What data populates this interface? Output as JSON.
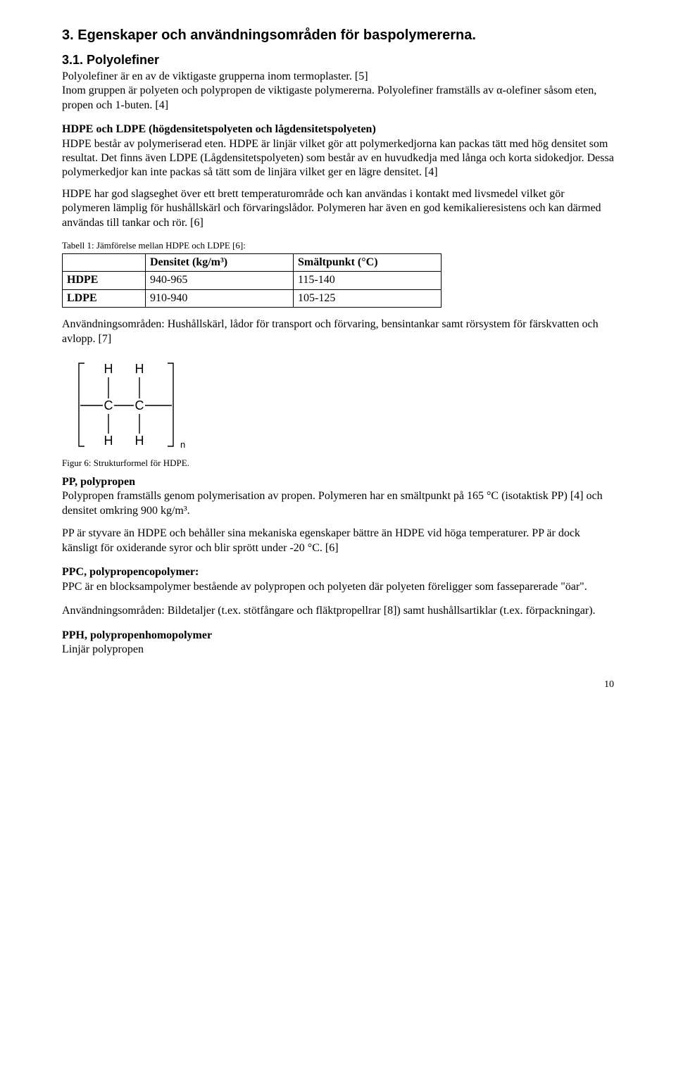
{
  "section": {
    "heading": "3. Egenskaper och användningsområden för baspolymererna.",
    "sub_heading": "3.1. Polyolefiner",
    "intro_para": "Polyolefiner är en av de viktigaste grupperna inom termoplaster. [5]\nInom gruppen är polyeten och polypropen de viktigaste polymererna. Polyolefiner framställs av α-olefiner såsom eten, propen och 1-buten. [4]",
    "hdpe_ldpe_heading": "HDPE och LDPE (högdensitetspolyeten och lågdensitetspolyeten)",
    "hdpe_ldpe_para": "HDPE består av polymeriserad eten. HDPE är linjär vilket gör att polymerkedjorna kan packas tätt med hög densitet som resultat. Det finns även LDPE (Lågdensitetspolyeten) som består av en huvudkedja med långa och korta sidokedjor. Dessa polymerkedjor kan inte packas så tätt som de linjära vilket ger en lägre densitet. [4]",
    "hdpe_use_para": "HDPE har god slagseghet över ett brett temperaturområde och kan användas i kontakt med livsmedel vilket gör polymeren lämplig för hushållskärl och förvaringslådor. Polymeren har även en god kemikalieresistens och kan därmed användas till tankar och rör. [6]",
    "table_caption": "Tabell 1: Jämförelse mellan HDPE och LDPE  [6]:",
    "table": {
      "headers": [
        "",
        "Densitet (kg/m³)",
        "Smältpunkt (°C)"
      ],
      "rows": [
        [
          "HDPE",
          "940-965",
          "115-140"
        ],
        [
          "LDPE",
          "910-940",
          "105-125"
        ]
      ]
    },
    "use_para": "Användningsområden: Hushållskärl, lådor för transport och förvaring, bensintankar samt rörsystem för färskvatten och avlopp. [7]",
    "figure_caption": "Figur 6: Strukturformel för HDPE.",
    "pp_heading": "PP, polypropen",
    "pp_para": "Polypropen framställs genom polymerisation av propen. Polymeren har en smältpunkt på 165 °C (isotaktisk PP) [4] och densitet omkring 900 kg/m³.",
    "pp_para2": "PP är styvare än HDPE och behåller sina mekaniska egenskaper bättre än HDPE vid höga temperaturer. PP är dock känsligt för oxiderande syror och blir sprött under -20 °C. [6]",
    "ppc_heading": "PPC, polypropencopolymer:",
    "ppc_para": "PPC är en blocksampolymer bestående av polypropen och polyeten där polyeten föreligger som fasseparerade \"öar\".",
    "ppc_use": "Användningsområden: Bildetaljer (t.ex. stötfångare och fläktpropellrar [8]) samt hushållsartiklar (t.ex. förpackningar).",
    "pph_heading": "PPH, polypropenhomopolymer",
    "pph_para": "Linjär polypropen"
  },
  "page_number": "10",
  "chem": {
    "labels": {
      "H": "H",
      "C": "C",
      "n": "n"
    },
    "stroke": "#000000",
    "stroke_width": 1.4,
    "font_family": "Arial, Helvetica, sans-serif",
    "font_size": 16
  }
}
